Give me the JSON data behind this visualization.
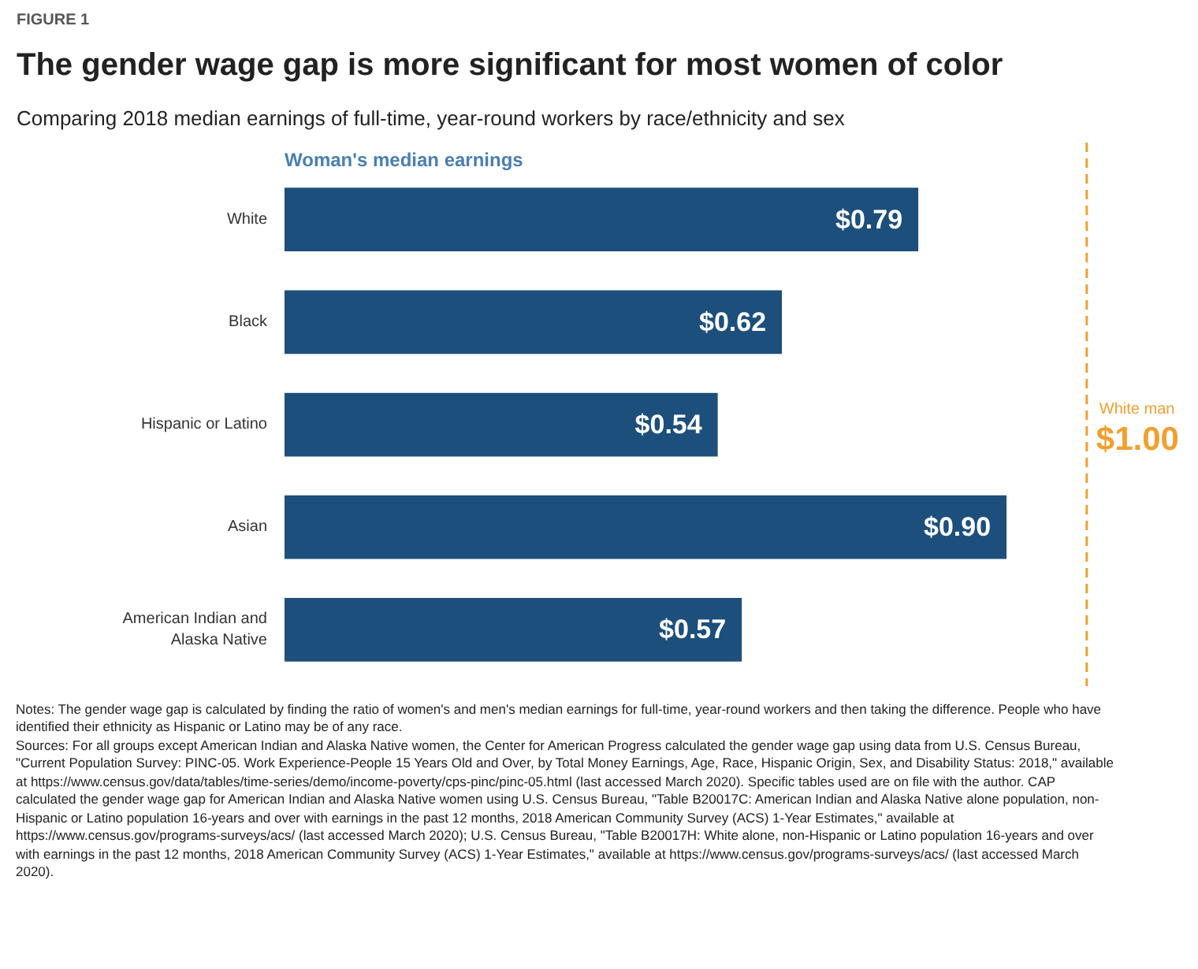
{
  "chart_data": {
    "type": "bar",
    "orientation": "horizontal",
    "title": "The gender wage gap is more significant for most women of color",
    "subtitle": "Comparing 2018 median earnings of full-time, year-round workers by race/ethnicity and sex",
    "categories": [
      "White",
      "Black",
      "Hispanic or Latino",
      "Asian",
      "American Indian and Alaska Native"
    ],
    "values": [
      0.79,
      0.62,
      0.54,
      0.9,
      0.57
    ],
    "value_labels": [
      "$0.79",
      "$0.62",
      "$0.54",
      "$0.90",
      "$0.57"
    ],
    "color": "#1d4f7c",
    "ref_lines": [
      {
        "axis": "x",
        "value": 1.0,
        "label": "White man\n$1.00",
        "color": "#f0a030",
        "line_style": "dashed"
      }
    ],
    "tick_labels": "y",
    "grid": false,
    "annotations": [
      "FIGURE 1",
      "Woman's median earnings",
      "Notes: The gender wage gap is calculated by finding the ratio of women's and men's median earnings for full-time, year-round workers and then taking the difference. People who have identified their ethnicity as Hispanic or Latino may be of any race.",
      "Sources: For all groups except American Indian and Alaska Native women, the Center for American Progress calculated the gender wage gap using data from U.S. Census Bureau, \"Current Population Survey: PINC-05. Work Experience-People 15 Years Old and Over, by Total Money Earnings, Age, Race, Hispanic Origin, Sex, and Disability Status: 2018,\" available at https://www.census.gov/data/tables/time-series/demo/income-poverty/cps-pinc/pinc-05.html (last accessed March 2020). Specific tables used are on file with the author. CAP calculated the gender wage gap for American Indian and Alaska Native women using U.S. Census Bureau, \"Table B20017C: American Indian and Alaska Native alone population, non-Hispanic or Latino population 16-years and over with earnings in the past 12 months, 2018 American Community Survey (ACS) 1-Year Estimates,\" available at https://www.census.gov/programs-surveys/acs/ (last accessed March 2020); U.S. Census Bureau, \"Table B20017H: White alone, non-Hispanic or Latino population 16-years and over with earnings in the past 12 months, 2018 American Community Survey (ACS) 1-Year Estimates,\" available at https://www.census.gov/programs-surveys/acs/ (last accessed March 2020)."
    ]
  }
}
